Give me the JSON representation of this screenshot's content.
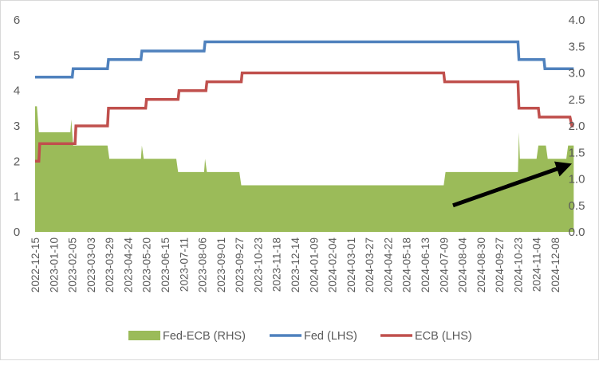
{
  "chart_data": {
    "type": "area",
    "x_tick_labels": [
      "2022-12-15",
      "2023-01-10",
      "2023-02-05",
      "2023-03-03",
      "2023-03-29",
      "2023-04-24",
      "2023-05-20",
      "2023-06-15",
      "2023-07-11",
      "2023-08-06",
      "2023-09-01",
      "2023-09-27",
      "2023-10-23",
      "2023-11-18",
      "2023-12-14",
      "2024-01-09",
      "2024-02-04",
      "2024-03-01",
      "2024-03-27",
      "2024-04-22",
      "2024-05-18",
      "2024-06-13",
      "2024-07-09",
      "2024-08-04",
      "2024-08-30",
      "2024-09-27",
      "2024-10-23",
      "2024-11-04",
      "2024-12-08"
    ],
    "left_axis": {
      "ylim": [
        0,
        6
      ],
      "ticks": [
        "0",
        "1",
        "2",
        "3",
        "4",
        "5",
        "6"
      ]
    },
    "right_axis": {
      "ylim": [
        0,
        4
      ],
      "ticks": [
        "0.0",
        "0.5",
        "1.0",
        "1.5",
        "2.0",
        "2.5",
        "3.0",
        "3.5",
        "4.0"
      ]
    },
    "series": [
      {
        "name": "Fed-ECB (RHS)",
        "type": "area",
        "axis": "right",
        "color": "#9bbb59",
        "points": [
          [
            0,
            2.37
          ],
          [
            0.1,
            2.37
          ],
          [
            0.2,
            1.88
          ],
          [
            1.9,
            1.88
          ],
          [
            1.95,
            2.12
          ],
          [
            2.05,
            1.63
          ],
          [
            3.9,
            1.63
          ],
          [
            4.0,
            1.38
          ],
          [
            5.7,
            1.38
          ],
          [
            5.75,
            1.63
          ],
          [
            5.85,
            1.38
          ],
          [
            7.6,
            1.38
          ],
          [
            7.7,
            1.13
          ],
          [
            9.1,
            1.13
          ],
          [
            9.15,
            1.38
          ],
          [
            9.25,
            1.13
          ],
          [
            11.0,
            1.13
          ],
          [
            11.1,
            0.88
          ],
          [
            22.0,
            0.88
          ],
          [
            22.1,
            1.13
          ],
          [
            26.0,
            1.13
          ],
          [
            26.05,
            1.88
          ],
          [
            26.1,
            1.38
          ],
          [
            27.0,
            1.38
          ],
          [
            27.1,
            1.63
          ],
          [
            27.5,
            1.63
          ],
          [
            27.6,
            1.38
          ],
          [
            28.6,
            1.38
          ],
          [
            28.7,
            1.63
          ],
          [
            29,
            1.63
          ]
        ]
      },
      {
        "name": "Fed (LHS)",
        "type": "line",
        "axis": "left",
        "color": "#4f81bd",
        "points": [
          [
            0,
            4.38
          ],
          [
            2.0,
            4.38
          ],
          [
            2.05,
            4.62
          ],
          [
            3.9,
            4.62
          ],
          [
            3.95,
            4.88
          ],
          [
            5.7,
            4.88
          ],
          [
            5.75,
            5.12
          ],
          [
            9.1,
            5.12
          ],
          [
            9.15,
            5.38
          ],
          [
            26.0,
            5.38
          ],
          [
            26.05,
            4.88
          ],
          [
            27.4,
            4.88
          ],
          [
            27.45,
            4.62
          ],
          [
            29,
            4.62
          ]
        ]
      },
      {
        "name": "ECB (LHS)",
        "type": "line",
        "axis": "left",
        "color": "#c0504d",
        "points": [
          [
            0,
            2.0
          ],
          [
            0.2,
            2.0
          ],
          [
            0.25,
            2.5
          ],
          [
            2.15,
            2.5
          ],
          [
            2.2,
            3.0
          ],
          [
            3.9,
            3.0
          ],
          [
            3.95,
            3.5
          ],
          [
            5.95,
            3.5
          ],
          [
            6.0,
            3.75
          ],
          [
            7.7,
            3.75
          ],
          [
            7.75,
            4.0
          ],
          [
            9.2,
            4.0
          ],
          [
            9.25,
            4.25
          ],
          [
            11.1,
            4.25
          ],
          [
            11.15,
            4.5
          ],
          [
            22.0,
            4.5
          ],
          [
            22.05,
            4.25
          ],
          [
            26.0,
            4.25
          ],
          [
            26.05,
            3.5
          ],
          [
            27.1,
            3.5
          ],
          [
            27.15,
            3.25
          ],
          [
            28.8,
            3.25
          ],
          [
            28.9,
            3.0
          ],
          [
            29,
            3.0
          ]
        ]
      }
    ],
    "annotations": [
      {
        "type": "arrow",
        "color": "#000000",
        "from": [
          22.5,
          0.5
        ],
        "to": [
          28.6,
          1.25
        ],
        "axis": "right"
      }
    ],
    "legend": {
      "placement": "bottom",
      "items": [
        {
          "label": "Fed-ECB (RHS)",
          "color": "#9bbb59",
          "symbol": "box"
        },
        {
          "label": "Fed (LHS)",
          "color": "#4f81bd",
          "symbol": "line"
        },
        {
          "label": "ECB (LHS)",
          "color": "#c0504d",
          "symbol": "line"
        }
      ]
    },
    "grid": false
  }
}
